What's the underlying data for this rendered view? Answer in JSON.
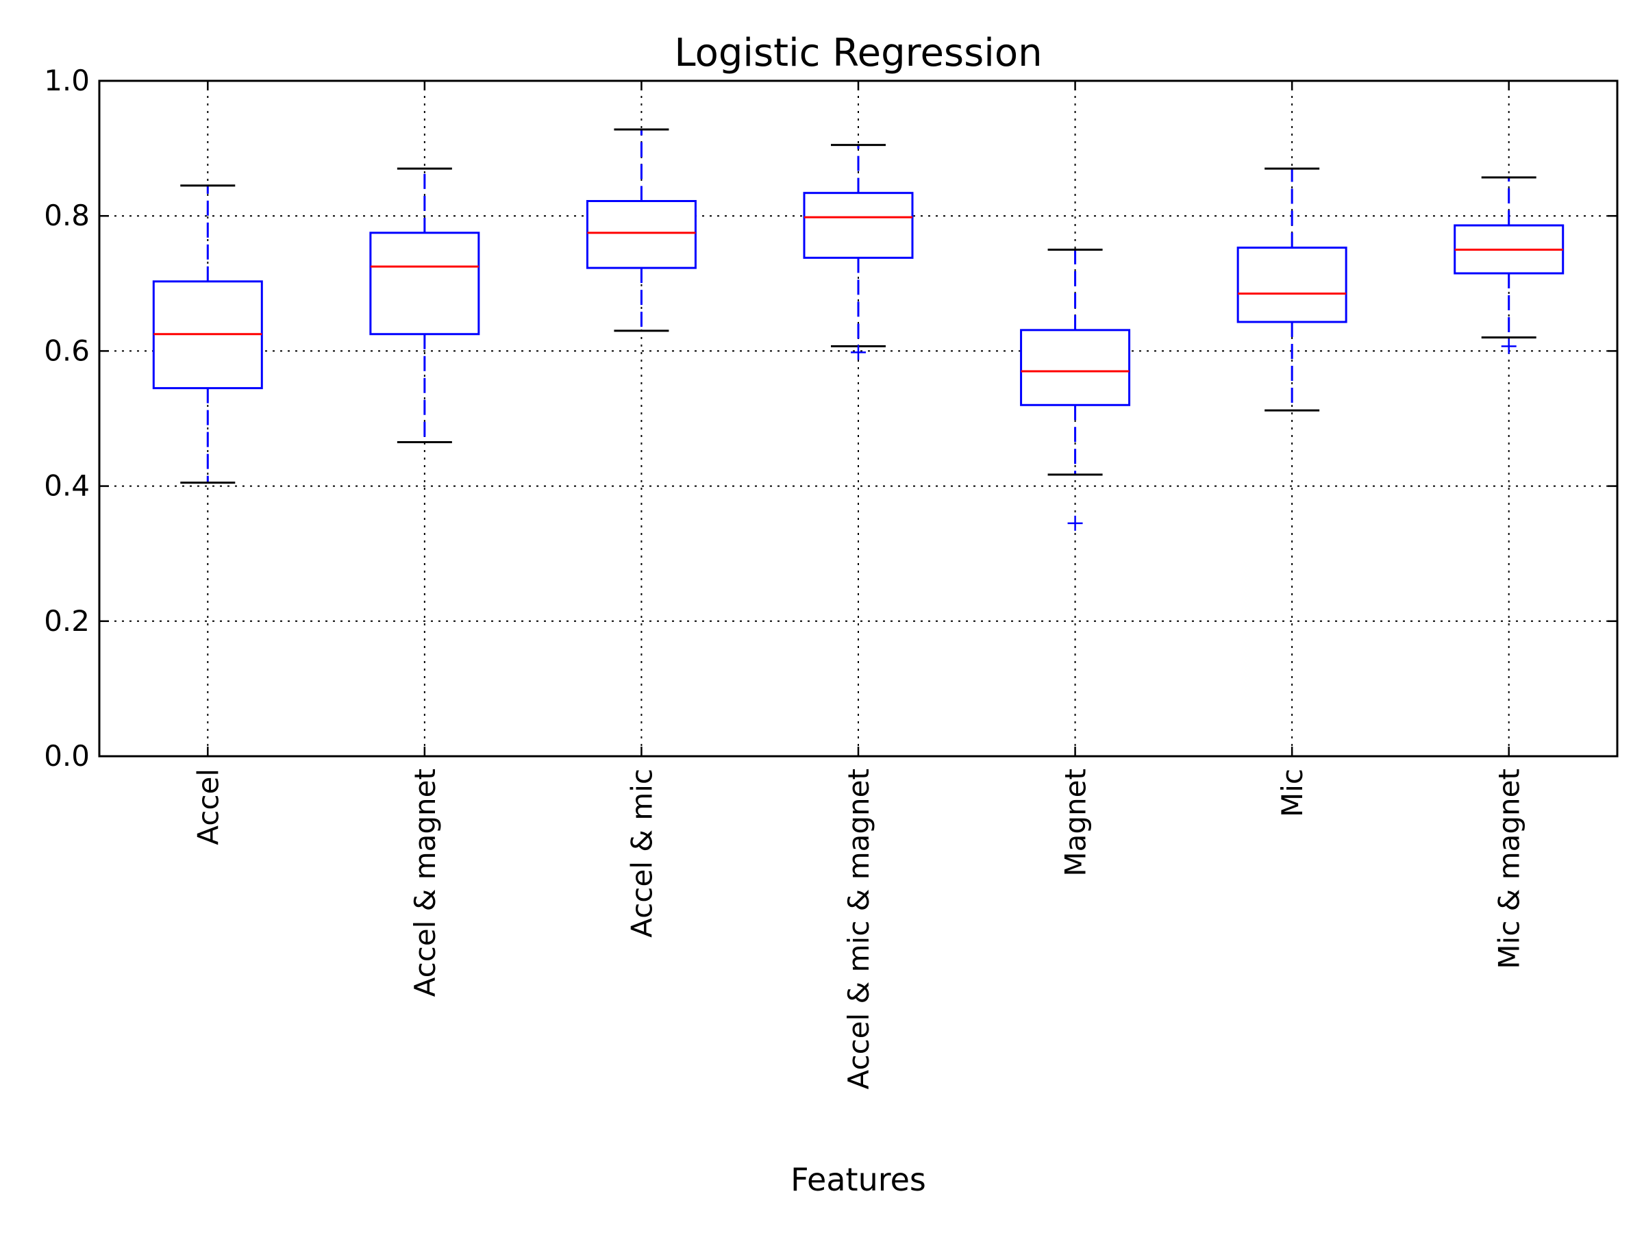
{
  "chart_data": {
    "type": "box",
    "title": "Logistic Regression",
    "xlabel": "Features",
    "ylabel": "",
    "ylim": [
      0.0,
      1.0
    ],
    "yticks": [
      "0.0",
      "0.2",
      "0.4",
      "0.6",
      "0.8",
      "1.0"
    ],
    "grid": true,
    "categories": [
      "Accel",
      "Accel & magnet",
      "Accel & mic",
      "Accel & mic & magnet",
      "Magnet",
      "Mic",
      "Mic & magnet"
    ],
    "boxes": [
      {
        "category": "Accel",
        "whisker_low": 0.405,
        "q1": 0.545,
        "median": 0.625,
        "q3": 0.703,
        "whisker_high": 0.845,
        "fliers": []
      },
      {
        "category": "Accel & magnet",
        "whisker_low": 0.465,
        "q1": 0.625,
        "median": 0.725,
        "q3": 0.775,
        "whisker_high": 0.87,
        "fliers": []
      },
      {
        "category": "Accel & mic",
        "whisker_low": 0.63,
        "q1": 0.723,
        "median": 0.775,
        "q3": 0.822,
        "whisker_high": 0.928,
        "fliers": []
      },
      {
        "category": "Accel & mic & magnet",
        "whisker_low": 0.607,
        "q1": 0.738,
        "median": 0.798,
        "q3": 0.834,
        "whisker_high": 0.905,
        "fliers": [
          0.598
        ]
      },
      {
        "category": "Magnet",
        "whisker_low": 0.417,
        "q1": 0.52,
        "median": 0.57,
        "q3": 0.631,
        "whisker_high": 0.75,
        "fliers": [
          0.345
        ]
      },
      {
        "category": "Mic",
        "whisker_low": 0.512,
        "q1": 0.643,
        "median": 0.685,
        "q3": 0.753,
        "whisker_high": 0.87,
        "fliers": []
      },
      {
        "category": "Mic & magnet",
        "whisker_low": 0.62,
        "q1": 0.715,
        "median": 0.75,
        "q3": 0.786,
        "whisker_high": 0.857,
        "fliers": [
          0.607
        ]
      }
    ],
    "colors": {
      "box": "#0000ff",
      "median": "#ff0000",
      "whisker_cap": "#000000",
      "flier": "#0000ff",
      "grid": "#000000"
    }
  }
}
